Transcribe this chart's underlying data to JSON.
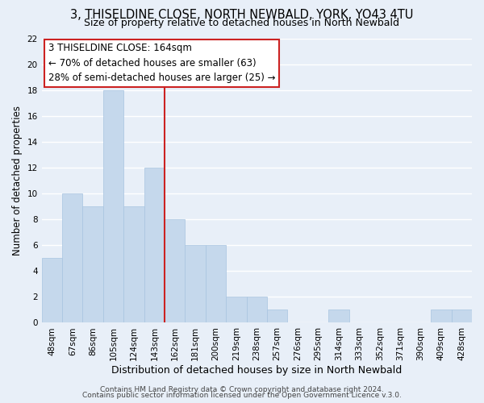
{
  "title": "3, THISELDINE CLOSE, NORTH NEWBALD, YORK, YO43 4TU",
  "subtitle": "Size of property relative to detached houses in North Newbald",
  "xlabel": "Distribution of detached houses by size in North Newbald",
  "ylabel": "Number of detached properties",
  "bar_labels": [
    "48sqm",
    "67sqm",
    "86sqm",
    "105sqm",
    "124sqm",
    "143sqm",
    "162sqm",
    "181sqm",
    "200sqm",
    "219sqm",
    "238sqm",
    "257sqm",
    "276sqm",
    "295sqm",
    "314sqm",
    "333sqm",
    "352sqm",
    "371sqm",
    "390sqm",
    "409sqm",
    "428sqm"
  ],
  "bar_values": [
    5,
    10,
    9,
    18,
    9,
    12,
    8,
    6,
    6,
    2,
    2,
    1,
    0,
    0,
    1,
    0,
    0,
    0,
    0,
    1,
    1
  ],
  "bar_color": "#c5d8ec",
  "bar_edge_color": "#a8c4e0",
  "annotation_title": "3 THISELDINE CLOSE: 164sqm",
  "annotation_line1": "← 70% of detached houses are smaller (63)",
  "annotation_line2": "28% of semi-detached houses are larger (25) →",
  "annotation_box_color": "#ffffff",
  "annotation_box_edge": "#cc2222",
  "vline_x": 5.5,
  "vline_color": "#cc2222",
  "ylim": [
    0,
    22
  ],
  "yticks": [
    0,
    2,
    4,
    6,
    8,
    10,
    12,
    14,
    16,
    18,
    20,
    22
  ],
  "footer1": "Contains HM Land Registry data © Crown copyright and database right 2024.",
  "footer2": "Contains public sector information licensed under the Open Government Licence v.3.0.",
  "bg_color": "#e8eff8",
  "plot_bg_color": "#e8eff8",
  "grid_color": "#ffffff",
  "title_fontsize": 10.5,
  "subtitle_fontsize": 9,
  "xlabel_fontsize": 9,
  "ylabel_fontsize": 8.5,
  "tick_fontsize": 7.5,
  "annotation_fontsize": 8.5,
  "footer_fontsize": 6.5
}
